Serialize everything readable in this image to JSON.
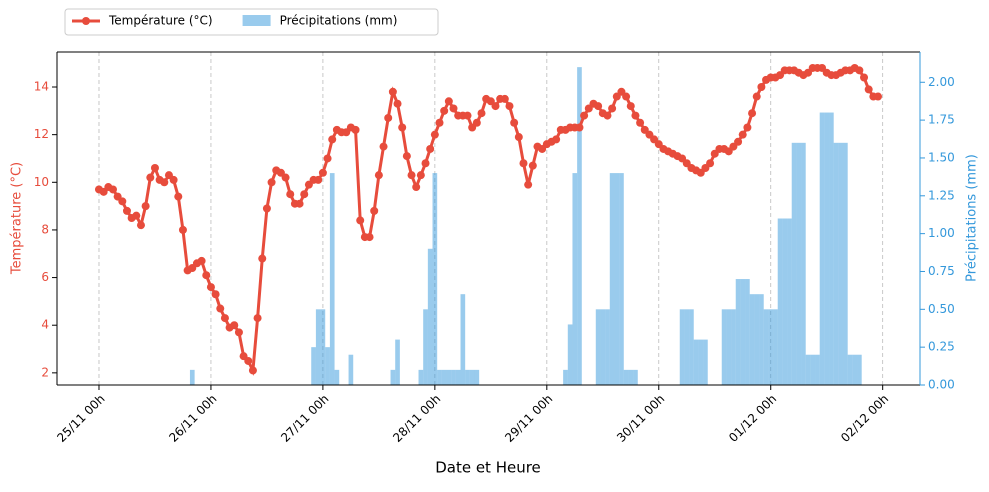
{
  "chart_data": {
    "type": "combo",
    "x_label": "Date et Heure",
    "y_label": "Température (°C)",
    "y2_label": "Précipitations (mm)",
    "xlim": [
      "24/11 15h",
      "02/12 08h"
    ],
    "xticks": [
      "25/11 00h",
      "26/11 00h",
      "27/11 00h",
      "28/11 00h",
      "29/11 00h",
      "30/11 00h",
      "01/12 00h",
      "02/12 00h"
    ],
    "ylim": [
      1.49,
      15.47
    ],
    "yticks": [
      2,
      4,
      6,
      8,
      10,
      12,
      14
    ],
    "y2lim": [
      0,
      2.2
    ],
    "y2ticks": [
      {
        "value": 0,
        "label": "0.00"
      },
      {
        "value": 0.25,
        "label": "0.25"
      },
      {
        "value": 0.5,
        "label": "0.50"
      },
      {
        "value": 0.75,
        "label": "0.75"
      },
      {
        "value": 1,
        "label": "1.00"
      },
      {
        "value": 1.25,
        "label": "1.25"
      },
      {
        "value": 1.5,
        "label": "1.50"
      },
      {
        "value": 1.75,
        "label": "1.75"
      },
      {
        "value": 2,
        "label": "2.00"
      }
    ],
    "grid": true,
    "legend": "outside-top-left",
    "series": [
      {
        "name": "Température (°C)",
        "type": "line",
        "color": "#e74c3c",
        "x": [
          "25/11 00h",
          "25/11 01h",
          "25/11 02h",
          "25/11 03h",
          "25/11 04h",
          "25/11 05h",
          "25/11 06h",
          "25/11 07h",
          "25/11 08h",
          "25/11 09h",
          "25/11 10h",
          "25/11 11h",
          "25/11 12h",
          "25/11 13h",
          "25/11 14h",
          "25/11 15h",
          "25/11 16h",
          "25/11 17h",
          "25/11 18h",
          "25/11 19h",
          "25/11 20h",
          "25/11 21h",
          "25/11 22h",
          "25/11 23h",
          "26/11 00h",
          "26/11 01h",
          "26/11 02h",
          "26/11 03h",
          "26/11 04h",
          "26/11 05h",
          "26/11 06h",
          "26/11 07h",
          "26/11 08h",
          "26/11 09h",
          "26/11 10h",
          "26/11 11h",
          "26/11 12h",
          "26/11 13h",
          "26/11 14h",
          "26/11 15h",
          "26/11 16h",
          "26/11 17h",
          "26/11 18h",
          "26/11 19h",
          "26/11 20h",
          "26/11 21h",
          "26/11 22h",
          "26/11 23h",
          "27/11 00h",
          "27/11 01h",
          "27/11 02h",
          "27/11 03h",
          "27/11 04h",
          "27/11 05h",
          "27/11 06h",
          "27/11 07h",
          "27/11 08h",
          "27/11 09h",
          "27/11 10h",
          "27/11 11h",
          "27/11 12h",
          "27/11 13h",
          "27/11 14h",
          "27/11 15h",
          "27/11 16h",
          "27/11 17h",
          "27/11 18h",
          "27/11 19h",
          "27/11 20h",
          "27/11 21h",
          "27/11 22h",
          "27/11 23h",
          "28/11 00h",
          "28/11 01h",
          "28/11 02h",
          "28/11 03h",
          "28/11 04h",
          "28/11 05h",
          "28/11 06h",
          "28/11 07h",
          "28/11 08h",
          "28/11 09h",
          "28/11 10h",
          "28/11 11h",
          "28/11 12h",
          "28/11 13h",
          "28/11 14h",
          "28/11 15h",
          "28/11 16h",
          "28/11 17h",
          "28/11 18h",
          "28/11 19h",
          "28/11 20h",
          "28/11 21h",
          "28/11 22h",
          "28/11 23h",
          "29/11 00h",
          "29/11 01h",
          "29/11 02h",
          "29/11 03h",
          "29/11 04h",
          "29/11 05h",
          "29/11 06h",
          "29/11 07h",
          "29/11 08h",
          "29/11 09h",
          "29/11 10h",
          "29/11 11h",
          "29/11 12h",
          "29/11 13h",
          "29/11 14h",
          "29/11 15h",
          "29/11 16h",
          "29/11 17h",
          "29/11 18h",
          "29/11 19h",
          "29/11 20h",
          "29/11 21h",
          "29/11 22h",
          "29/11 23h",
          "30/11 00h",
          "30/11 01h",
          "30/11 02h",
          "30/11 03h",
          "30/11 04h",
          "30/11 05h",
          "30/11 06h",
          "30/11 07h",
          "30/11 08h",
          "30/11 09h",
          "30/11 10h",
          "30/11 11h",
          "30/11 12h",
          "30/11 13h",
          "30/11 14h",
          "30/11 15h",
          "30/11 16h",
          "30/11 17h",
          "30/11 18h",
          "30/11 19h",
          "30/11 20h",
          "30/11 21h",
          "30/11 22h",
          "30/11 23h",
          "01/12 00h",
          "01/12 01h",
          "01/12 02h",
          "01/12 03h",
          "01/12 04h",
          "01/12 05h",
          "01/12 06h",
          "01/12 07h",
          "01/12 08h",
          "01/12 09h",
          "01/12 10h",
          "01/12 11h",
          "01/12 12h",
          "01/12 13h",
          "01/12 14h",
          "01/12 15h",
          "01/12 16h",
          "01/12 17h",
          "01/12 18h",
          "01/12 19h",
          "01/12 20h",
          "01/12 21h",
          "01/12 22h",
          "01/12 23h"
        ],
        "values": [
          9.7,
          9.6,
          9.8,
          9.7,
          9.4,
          9.2,
          8.8,
          8.5,
          8.6,
          8.2,
          9.0,
          10.2,
          10.6,
          10.1,
          10.0,
          10.3,
          10.1,
          9.4,
          8.0,
          6.3,
          6.4,
          6.6,
          6.7,
          6.1,
          5.6,
          5.3,
          4.7,
          4.3,
          3.9,
          4.0,
          3.7,
          2.7,
          2.5,
          2.1,
          4.3,
          6.8,
          8.9,
          10.0,
          10.5,
          10.4,
          10.2,
          9.5,
          9.1,
          9.1,
          9.5,
          9.9,
          10.1,
          10.1,
          10.4,
          11.0,
          11.8,
          12.2,
          12.1,
          12.1,
          12.3,
          12.2,
          8.4,
          7.7,
          7.7,
          8.8,
          10.3,
          11.5,
          12.7,
          13.8,
          13.3,
          12.3,
          11.1,
          10.3,
          9.8,
          10.3,
          10.8,
          11.4,
          12.0,
          12.5,
          13.0,
          13.4,
          13.1,
          12.8,
          12.8,
          12.8,
          12.3,
          12.5,
          12.9,
          13.5,
          13.4,
          13.2,
          13.5,
          13.5,
          13.2,
          12.5,
          11.9,
          10.8,
          9.9,
          10.7,
          11.5,
          11.4,
          11.6,
          11.7,
          11.8,
          12.2,
          12.2,
          12.3,
          12.3,
          12.3,
          12.8,
          13.1,
          13.3,
          13.2,
          12.9,
          12.8,
          13.1,
          13.6,
          13.8,
          13.6,
          13.2,
          12.8,
          12.5,
          12.2,
          12.0,
          11.8,
          11.6,
          11.4,
          11.3,
          11.2,
          11.1,
          11.0,
          10.8,
          10.6,
          10.5,
          10.4,
          10.6,
          10.8,
          11.2,
          11.4,
          11.4,
          11.3,
          11.5,
          11.7,
          12.0,
          12.3,
          12.9,
          13.6,
          14.0,
          14.3,
          14.4,
          14.4,
          14.5,
          14.7,
          14.7,
          14.7,
          14.6,
          14.5,
          14.6,
          14.8,
          14.8,
          14.8,
          14.6,
          14.5,
          14.5,
          14.6,
          14.7,
          14.7,
          14.8,
          14.7,
          14.4,
          13.9,
          13.6,
          13.6
        ]
      },
      {
        "name": "Précipitations (mm)",
        "type": "bar",
        "axis": "y2",
        "color": "#3498db",
        "x": [
          "25/11 20h",
          "26/11 22h",
          "26/11 23h",
          "27/11 00h",
          "27/11 01h",
          "27/11 02h",
          "27/11 03h",
          "27/11 06h",
          "27/11 15h",
          "27/11 16h",
          "27/11 21h",
          "27/11 22h",
          "27/11 23h",
          "28/11 00h",
          "28/11 01h",
          "28/11 02h",
          "28/11 03h",
          "28/11 04h",
          "28/11 05h",
          "28/11 06h",
          "28/11 07h",
          "28/11 08h",
          "28/11 09h",
          "29/11 04h",
          "29/11 05h",
          "29/11 06h",
          "29/11 07h",
          "29/11 11h",
          "29/11 12h",
          "29/11 13h",
          "29/11 14h",
          "29/11 15h",
          "29/11 16h",
          "29/11 17h",
          "29/11 18h",
          "29/11 19h",
          "30/11 05h",
          "30/11 06h",
          "30/11 07h",
          "30/11 08h",
          "30/11 09h",
          "30/11 10h",
          "30/11 14h",
          "30/11 15h",
          "30/11 16h",
          "30/11 17h",
          "30/11 18h",
          "30/11 19h",
          "30/11 20h",
          "30/11 21h",
          "30/11 22h",
          "30/11 23h",
          "01/12 00h",
          "01/12 01h",
          "01/12 02h",
          "01/12 03h",
          "01/12 04h",
          "01/12 05h",
          "01/12 06h",
          "01/12 07h",
          "01/12 08h",
          "01/12 09h",
          "01/12 10h",
          "01/12 11h",
          "01/12 12h",
          "01/12 13h",
          "01/12 14h",
          "01/12 15h",
          "01/12 16h",
          "01/12 17h",
          "01/12 18h",
          "01/12 19h"
        ],
        "values": [
          0.1,
          0.25,
          0.5,
          0.5,
          0.25,
          1.4,
          0.1,
          0.2,
          0.1,
          0.3,
          0.1,
          0.5,
          0.9,
          1.4,
          0.1,
          0.1,
          0.1,
          0.1,
          0.1,
          0.6,
          0.1,
          0.1,
          0.1,
          0.1,
          0.4,
          1.4,
          2.1,
          0.5,
          0.5,
          0.5,
          1.4,
          1.4,
          1.4,
          0.1,
          0.1,
          0.1,
          0.5,
          0.5,
          0.5,
          0.3,
          0.3,
          0.3,
          0.5,
          0.5,
          0.5,
          0.7,
          0.7,
          0.7,
          0.6,
          0.6,
          0.6,
          0.5,
          0.5,
          0.5,
          1.1,
          1.1,
          1.1,
          1.6,
          1.6,
          1.6,
          0.2,
          0.2,
          0.2,
          1.8,
          1.8,
          1.8,
          1.6,
          1.6,
          1.6,
          0.2,
          0.2,
          0.2
        ]
      }
    ]
  }
}
